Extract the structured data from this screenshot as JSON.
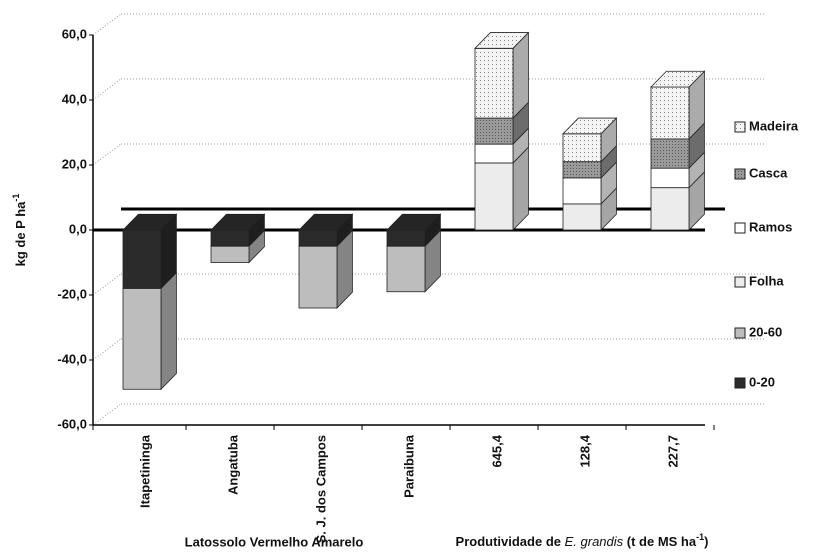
{
  "chart_data": {
    "type": "bar3d_stacked",
    "y_label": "kg de P ha",
    "y_label_sup": "-1",
    "group_labels": [
      {
        "text": "Latossolo Vermelho Amarelo",
        "categories": [
          0,
          3
        ]
      },
      {
        "parts": [
          "Produtividade de ",
          "E. grandis",
          "  (t de MS ha",
          "-1",
          ")"
        ],
        "categories": [
          4,
          6
        ]
      }
    ],
    "categories": [
      "Itapetininga",
      "Angatuba",
      "S. J. dos Campos",
      "Paraibuna",
      "645,4",
      "128,4",
      "227,7"
    ],
    "series": [
      {
        "name": "0-20",
        "color": "#2b2b2b",
        "values": [
          -18,
          -5,
          -5,
          -5,
          null,
          null,
          null
        ]
      },
      {
        "name": "20-60",
        "color": "#bdbdbd",
        "values": [
          -31,
          -5,
          -19,
          -14,
          null,
          null,
          null
        ]
      },
      {
        "name": "Folha",
        "color": "#ececec",
        "values": [
          null,
          null,
          null,
          null,
          20.6,
          8,
          13
        ]
      },
      {
        "name": "Ramos",
        "color": "#ffffff",
        "values": [
          null,
          null,
          null,
          null,
          5.8,
          8,
          6
        ]
      },
      {
        "name": "Casca",
        "color": "#9a9a9a",
        "values": [
          null,
          null,
          null,
          null,
          8,
          5,
          9
        ]
      },
      {
        "name": "Madeira",
        "color": "#f4f4f4",
        "values": [
          null,
          null,
          null,
          null,
          21.5,
          8.6,
          16
        ]
      }
    ],
    "ylim": [
      -60,
      60
    ],
    "yticks": [
      {
        "value": -60,
        "label": "-60,0"
      },
      {
        "value": -40,
        "label": "-40,0"
      },
      {
        "value": -20,
        "label": "-20,0"
      },
      {
        "value": 0,
        "label": "0,0"
      },
      {
        "value": 20,
        "label": "20,0"
      },
      {
        "value": 40,
        "label": "40,0"
      },
      {
        "value": 60,
        "label": "60,0"
      }
    ],
    "grid": true
  }
}
